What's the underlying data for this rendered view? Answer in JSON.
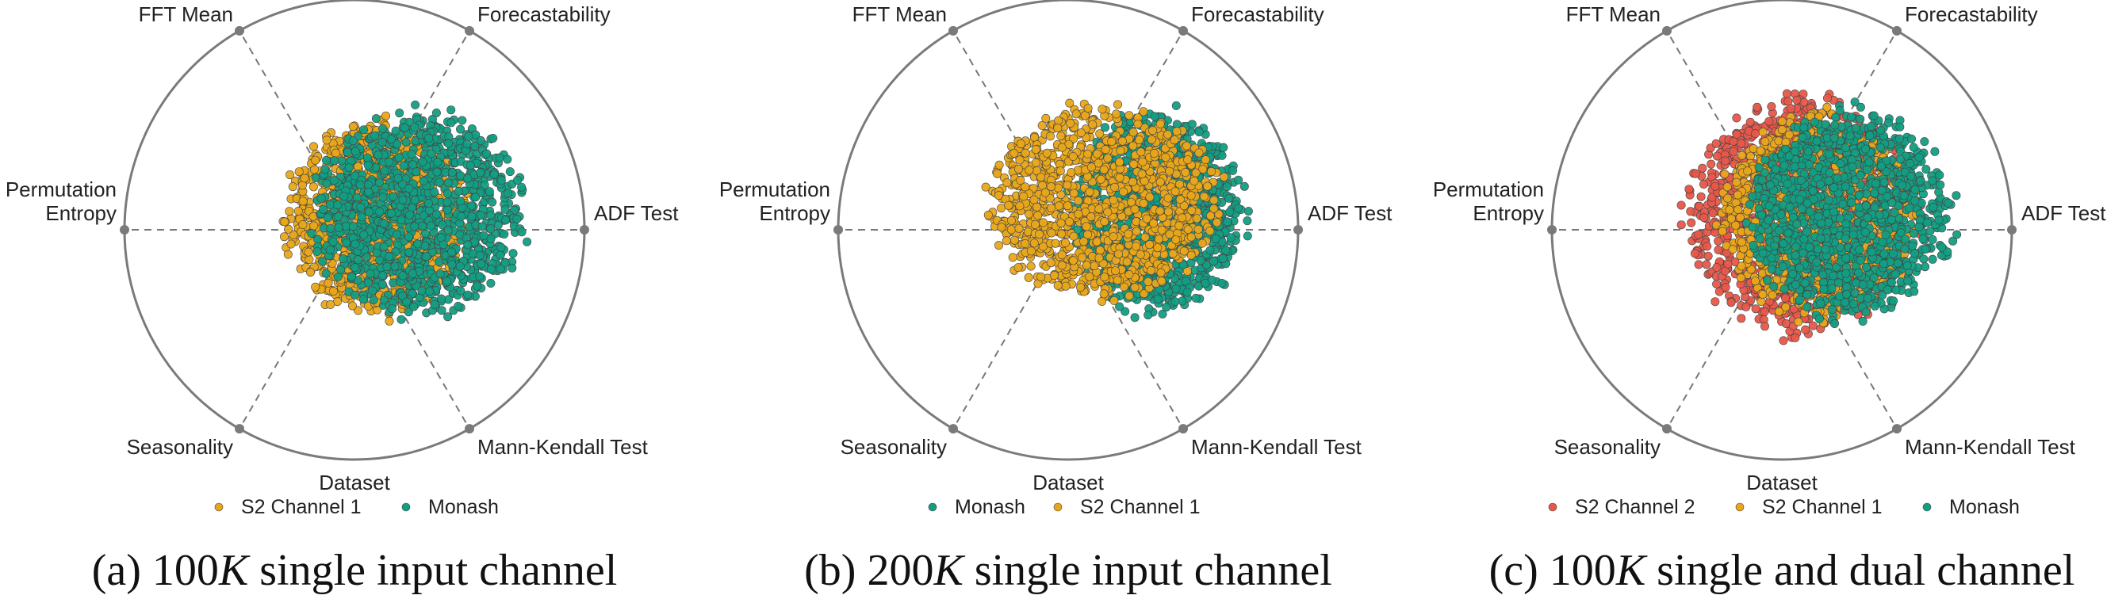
{
  "chart_data": [
    {
      "type": "scatter",
      "layout": "radar",
      "axes": [
        "ADF Test",
        "Forecastability",
        "FFT Mean",
        "Permutation Entropy",
        "Seasonality",
        "Mann-Kendall Test"
      ],
      "legend_title": "Dataset",
      "legend_placement": "bottom",
      "caption": {
        "prefix": "(a) ",
        "number": "100",
        "var": "K",
        "rest": " single input channel"
      },
      "series": [
        {
          "name": "S2 Channel 1",
          "color": "#E9A61A",
          "region": {
            "cx": 0.1,
            "cy": 0.05,
            "rx": 0.4,
            "ry": 0.42
          }
        },
        {
          "name": "Monash",
          "color": "#129E83",
          "region": {
            "cx": 0.28,
            "cy": 0.07,
            "rx": 0.45,
            "ry": 0.45
          }
        }
      ]
    },
    {
      "type": "scatter",
      "layout": "radar",
      "axes": [
        "ADF Test",
        "Forecastability",
        "FFT Mean",
        "Permutation Entropy",
        "Seasonality",
        "Mann-Kendall Test"
      ],
      "legend_title": "Dataset",
      "legend_placement": "bottom",
      "caption": {
        "prefix": "(b) ",
        "number": "200",
        "var": "K",
        "rest": " single input channel"
      },
      "series": [
        {
          "name": "Monash",
          "color": "#129E83",
          "region": {
            "cx": 0.38,
            "cy": 0.08,
            "rx": 0.38,
            "ry": 0.45
          }
        },
        {
          "name": "S2 Channel 1",
          "color": "#E9A61A",
          "region": {
            "cx": 0.15,
            "cy": 0.12,
            "rx": 0.5,
            "ry": 0.42
          }
        }
      ]
    },
    {
      "type": "scatter",
      "layout": "radar",
      "axes": [
        "ADF Test",
        "Forecastability",
        "FFT Mean",
        "Permutation Entropy",
        "Seasonality",
        "Mann-Kendall Test"
      ],
      "legend_title": "Dataset",
      "legend_placement": "bottom",
      "caption": {
        "prefix": "(c) ",
        "number": "100",
        "var": "K",
        "rest": " single and dual channel"
      },
      "series": [
        {
          "name": "S2 Channel 2",
          "color": "#E8574A",
          "region": {
            "cx": 0.08,
            "cy": 0.06,
            "rx": 0.5,
            "ry": 0.52
          }
        },
        {
          "name": "S2 Channel 1",
          "color": "#E9A61A",
          "region": {
            "cx": 0.16,
            "cy": 0.06,
            "rx": 0.42,
            "ry": 0.44
          }
        },
        {
          "name": "Monash",
          "color": "#129E83",
          "region": {
            "cx": 0.3,
            "cy": 0.07,
            "rx": 0.44,
            "ry": 0.46
          }
        }
      ]
    }
  ]
}
